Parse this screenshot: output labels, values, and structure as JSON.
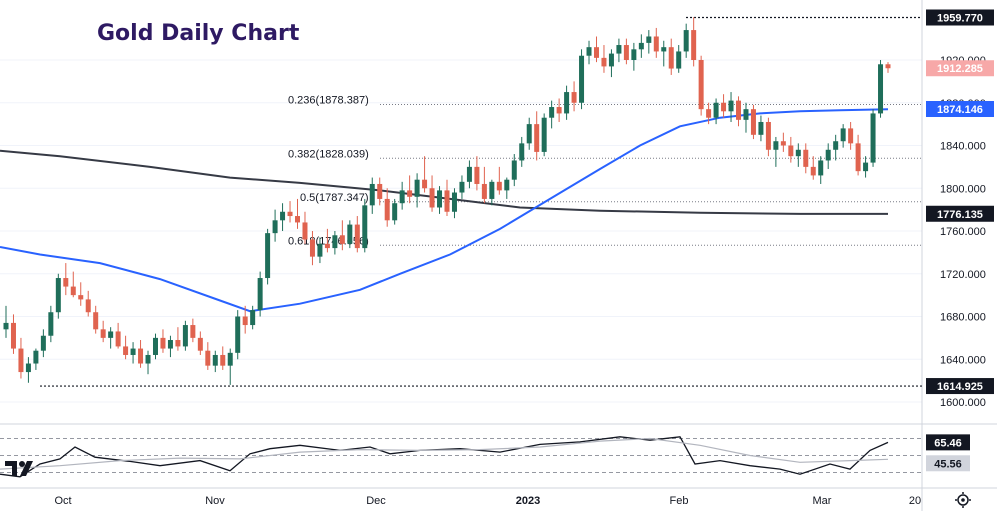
{
  "chart_data": {
    "type": "candlestick",
    "title": "Gold Daily Chart",
    "price_axis": {
      "range": [
        1590,
        1970
      ],
      "ticks": [
        "1600.000",
        "1640.000",
        "1680.000",
        "1720.000",
        "1760.000",
        "1800.000",
        "1840.000",
        "1880.000",
        "1920.000"
      ]
    },
    "time_axis": {
      "labels": [
        {
          "text": "Oct",
          "bold": false
        },
        {
          "text": "Nov",
          "bold": false
        },
        {
          "text": "Dec",
          "bold": false
        },
        {
          "text": "2023",
          "bold": true
        },
        {
          "text": "Feb",
          "bold": false
        },
        {
          "text": "Mar",
          "bold": false
        },
        {
          "text": "20",
          "bold": false
        }
      ]
    },
    "price_tags": [
      {
        "text": "1959.770",
        "value": 1959.77,
        "bg": "#131722",
        "fg": "#ffffff"
      },
      {
        "text": "1912.285",
        "value": 1912.285,
        "bg": "#f7a8a8",
        "fg": "#ffffff"
      },
      {
        "text": "1874.146",
        "value": 1874.146,
        "bg": "#2962ff",
        "fg": "#ffffff"
      },
      {
        "text": "1776.135",
        "value": 1776.135,
        "bg": "#131722",
        "fg": "#ffffff"
      },
      {
        "text": "1614.925",
        "value": 1614.925,
        "bg": "#131722",
        "fg": "#ffffff"
      }
    ],
    "fib_levels": [
      {
        "label": "0.236(1878.387)",
        "value": 1878.387
      },
      {
        "label": "0.382(1828.039)",
        "value": 1828.039
      },
      {
        "label": "0.5(1787.347)",
        "value": 1787.347
      },
      {
        "label": "0.618(1746.656)",
        "value": 1746.656
      }
    ],
    "extreme_levels": [
      {
        "value": 1959.77
      },
      {
        "value": 1614.925
      }
    ],
    "candles": [
      [
        1668,
        1690,
        1660,
        1674
      ],
      [
        1674,
        1682,
        1645,
        1650
      ],
      [
        1650,
        1660,
        1622,
        1628
      ],
      [
        1628,
        1642,
        1618,
        1636
      ],
      [
        1636,
        1650,
        1630,
        1648
      ],
      [
        1648,
        1668,
        1642,
        1662
      ],
      [
        1662,
        1690,
        1656,
        1684
      ],
      [
        1684,
        1720,
        1678,
        1716
      ],
      [
        1716,
        1730,
        1700,
        1708
      ],
      [
        1708,
        1722,
        1698,
        1700
      ],
      [
        1700,
        1712,
        1690,
        1696
      ],
      [
        1696,
        1704,
        1680,
        1684
      ],
      [
        1684,
        1690,
        1664,
        1668
      ],
      [
        1668,
        1676,
        1656,
        1660
      ],
      [
        1660,
        1670,
        1650,
        1666
      ],
      [
        1666,
        1674,
        1650,
        1652
      ],
      [
        1652,
        1662,
        1640,
        1644
      ],
      [
        1644,
        1656,
        1636,
        1650
      ],
      [
        1650,
        1658,
        1632,
        1636
      ],
      [
        1636,
        1648,
        1626,
        1644
      ],
      [
        1644,
        1664,
        1640,
        1660
      ],
      [
        1660,
        1668,
        1646,
        1650
      ],
      [
        1650,
        1662,
        1642,
        1658
      ],
      [
        1658,
        1670,
        1648,
        1652
      ],
      [
        1652,
        1676,
        1648,
        1672
      ],
      [
        1672,
        1678,
        1656,
        1660
      ],
      [
        1660,
        1666,
        1644,
        1648
      ],
      [
        1648,
        1656,
        1630,
        1634
      ],
      [
        1634,
        1648,
        1628,
        1644
      ],
      [
        1644,
        1652,
        1630,
        1634
      ],
      [
        1634,
        1650,
        1616,
        1646
      ],
      [
        1646,
        1686,
        1640,
        1680
      ],
      [
        1680,
        1690,
        1664,
        1672
      ],
      [
        1672,
        1690,
        1668,
        1686
      ],
      [
        1686,
        1722,
        1680,
        1716
      ],
      [
        1716,
        1762,
        1710,
        1758
      ],
      [
        1758,
        1780,
        1750,
        1770
      ],
      [
        1770,
        1786,
        1760,
        1778
      ],
      [
        1778,
        1788,
        1768,
        1774
      ],
      [
        1774,
        1790,
        1762,
        1768
      ],
      [
        1768,
        1778,
        1748,
        1752
      ],
      [
        1752,
        1760,
        1728,
        1736
      ],
      [
        1736,
        1754,
        1730,
        1748
      ],
      [
        1748,
        1762,
        1740,
        1744
      ],
      [
        1744,
        1760,
        1738,
        1756
      ],
      [
        1756,
        1770,
        1742,
        1748
      ],
      [
        1748,
        1770,
        1744,
        1766
      ],
      [
        1766,
        1774,
        1740,
        1744
      ],
      [
        1744,
        1790,
        1740,
        1784
      ],
      [
        1784,
        1810,
        1776,
        1804
      ],
      [
        1804,
        1810,
        1784,
        1790
      ],
      [
        1790,
        1800,
        1764,
        1770
      ],
      [
        1770,
        1790,
        1766,
        1786
      ],
      [
        1786,
        1806,
        1780,
        1798
      ],
      [
        1798,
        1812,
        1786,
        1792
      ],
      [
        1792,
        1814,
        1782,
        1808
      ],
      [
        1808,
        1830,
        1796,
        1800
      ],
      [
        1800,
        1812,
        1778,
        1782
      ],
      [
        1782,
        1802,
        1776,
        1798
      ],
      [
        1798,
        1808,
        1774,
        1778
      ],
      [
        1778,
        1800,
        1772,
        1796
      ],
      [
        1796,
        1812,
        1790,
        1806
      ],
      [
        1806,
        1826,
        1800,
        1820
      ],
      [
        1820,
        1830,
        1798,
        1804
      ],
      [
        1804,
        1820,
        1786,
        1790
      ],
      [
        1790,
        1808,
        1784,
        1806
      ],
      [
        1806,
        1820,
        1794,
        1798
      ],
      [
        1798,
        1810,
        1790,
        1808
      ],
      [
        1808,
        1832,
        1802,
        1826
      ],
      [
        1826,
        1848,
        1820,
        1842
      ],
      [
        1842,
        1866,
        1836,
        1860
      ],
      [
        1860,
        1872,
        1826,
        1834
      ],
      [
        1834,
        1870,
        1830,
        1866
      ],
      [
        1866,
        1882,
        1856,
        1876
      ],
      [
        1876,
        1884,
        1862,
        1870
      ],
      [
        1870,
        1896,
        1864,
        1890
      ],
      [
        1890,
        1900,
        1872,
        1880
      ],
      [
        1880,
        1930,
        1874,
        1924
      ],
      [
        1924,
        1938,
        1916,
        1932
      ],
      [
        1932,
        1942,
        1918,
        1922
      ],
      [
        1922,
        1934,
        1908,
        1914
      ],
      [
        1914,
        1930,
        1904,
        1926
      ],
      [
        1926,
        1940,
        1918,
        1934
      ],
      [
        1934,
        1940,
        1916,
        1920
      ],
      [
        1920,
        1936,
        1910,
        1930
      ],
      [
        1930,
        1944,
        1922,
        1936
      ],
      [
        1936,
        1948,
        1926,
        1942
      ],
      [
        1942,
        1950,
        1922,
        1928
      ],
      [
        1928,
        1938,
        1914,
        1932
      ],
      [
        1932,
        1940,
        1906,
        1912
      ],
      [
        1912,
        1934,
        1908,
        1928
      ],
      [
        1928,
        1954,
        1922,
        1948
      ],
      [
        1948,
        1960,
        1914,
        1920
      ],
      [
        1920,
        1924,
        1868,
        1874
      ],
      [
        1874,
        1880,
        1860,
        1866
      ],
      [
        1866,
        1884,
        1860,
        1880
      ],
      [
        1880,
        1888,
        1866,
        1872
      ],
      [
        1872,
        1890,
        1862,
        1882
      ],
      [
        1882,
        1886,
        1858,
        1864
      ],
      [
        1864,
        1880,
        1852,
        1874
      ],
      [
        1874,
        1878,
        1846,
        1850
      ],
      [
        1850,
        1868,
        1844,
        1862
      ],
      [
        1862,
        1866,
        1830,
        1836
      ],
      [
        1836,
        1848,
        1820,
        1844
      ],
      [
        1844,
        1852,
        1834,
        1840
      ],
      [
        1840,
        1848,
        1824,
        1830
      ],
      [
        1830,
        1842,
        1820,
        1836
      ],
      [
        1836,
        1842,
        1814,
        1820
      ],
      [
        1820,
        1830,
        1808,
        1812
      ],
      [
        1812,
        1830,
        1804,
        1826
      ],
      [
        1826,
        1842,
        1818,
        1836
      ],
      [
        1836,
        1850,
        1826,
        1844
      ],
      [
        1844,
        1860,
        1838,
        1856
      ],
      [
        1856,
        1862,
        1836,
        1842
      ],
      [
        1842,
        1850,
        1812,
        1816
      ],
      [
        1816,
        1830,
        1810,
        1824
      ],
      [
        1824,
        1874,
        1820,
        1870
      ],
      [
        1870,
        1920,
        1866,
        1916
      ],
      [
        1916,
        1918,
        1908,
        1912.3
      ]
    ],
    "ma_fast_color": "#2962ff",
    "ma_slow_color": "#363a45",
    "up_color": "#1f6e5a",
    "down_color": "#e0634f",
    "rsi": {
      "values": [
        "65.46",
        "45.56"
      ],
      "levels": [
        70,
        50,
        30
      ],
      "range": [
        20,
        80
      ]
    }
  }
}
